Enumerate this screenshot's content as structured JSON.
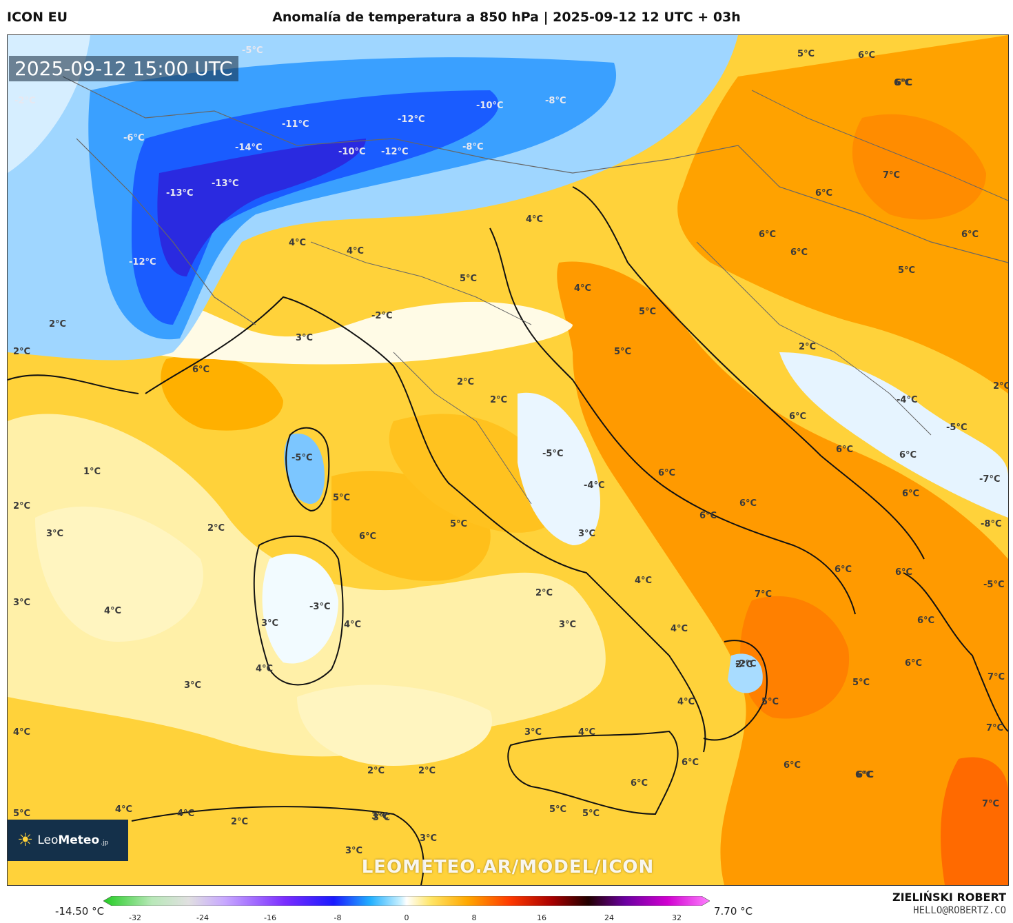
{
  "header": {
    "model": "ICON EU",
    "title": "Anomalía de temperatura a 850 hPa | 2025-09-12 12 UTC + 03h"
  },
  "map": {
    "timestamp": "2025-09-12 15:00 UTC",
    "labels": [
      "-5°C",
      "-2°C",
      "-6°C",
      "-11°C",
      "-14°C",
      "-13°C",
      "-13°C",
      "-12°C",
      "-10°C",
      "-12°C",
      "-12°C",
      "-8°C",
      "-10°C",
      "-8°C",
      "-2°C",
      "-5°C",
      "-4°C",
      "-3°C",
      "-2°C",
      "-4°C",
      "-5°C",
      "-5°C",
      "-8°C",
      "-7°C",
      "-5°C",
      "4°C",
      "4°C",
      "5°C",
      "4°C",
      "4°C",
      "5°C",
      "2°C",
      "2°C",
      "3°C",
      "2°C",
      "6°C",
      "2°C",
      "2°C",
      "1°C",
      "2°C",
      "2°C",
      "3°C",
      "5°C",
      "6°C",
      "5°C",
      "3°C",
      "4°C",
      "3°C",
      "4°C",
      "4°C",
      "2°C",
      "3°C",
      "3°C",
      "4°C",
      "3°C",
      "4°C",
      "4°C",
      "5°C",
      "6°C",
      "6°C",
      "7°C",
      "6°C",
      "6°C",
      "6°C",
      "6°C",
      "5°C",
      "6°C",
      "6°C",
      "6°C",
      "2°C",
      "2°C",
      "6°C",
      "6°C",
      "6°C",
      "6°C",
      "6°C",
      "6°C",
      "6°C",
      "7°C",
      "6°C",
      "5°C",
      "5°C",
      "6°C",
      "6°C",
      "7°C",
      "7°C",
      "7°C",
      "3°C",
      "4°C",
      "6°C",
      "5°C",
      "5°C",
      "3°C",
      "2°C",
      "2°C",
      "4°C",
      "4°C",
      "3°C",
      "3°C",
      "2°C",
      "3°C",
      "5°C",
      "4°C",
      "6°C",
      "6°C",
      "5°C",
      "6°C"
    ]
  },
  "logo": {
    "brand_light": "Leo",
    "brand_bold": "Meteo",
    "tld": ".jp"
  },
  "watermark": "LEOMETEO.AR/MODEL/ICON",
  "colorbar": {
    "min_label": "-14.50 °C",
    "max_label": "7.70 °C",
    "ticks": [
      "-32",
      "-24",
      "-16",
      "-8",
      "0",
      "8",
      "16",
      "24",
      "32"
    ]
  },
  "author": {
    "name": "ZIELIŃSKI ROBERT",
    "email": "HELLO@ROBERTZ.CO"
  }
}
